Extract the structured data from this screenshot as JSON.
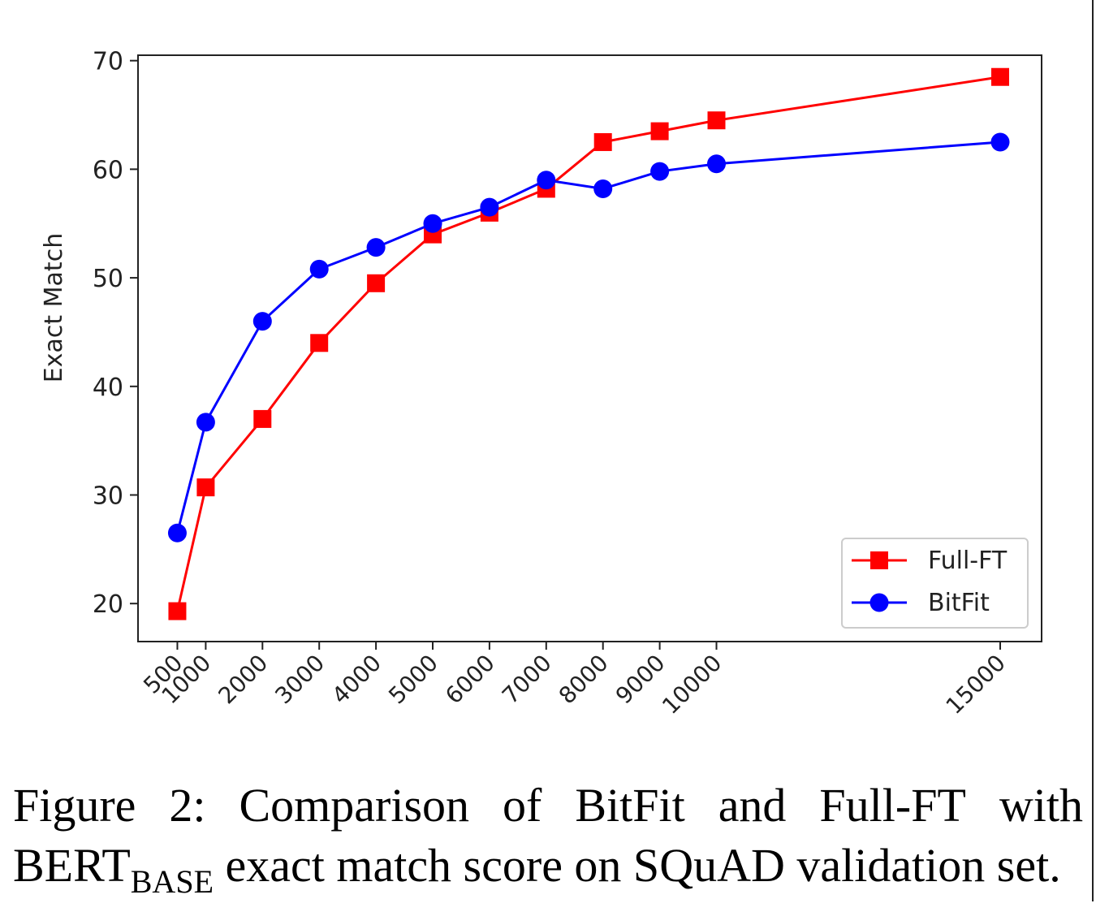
{
  "chart_data": {
    "type": "line",
    "x": [
      500,
      1000,
      2000,
      3000,
      4000,
      5000,
      6000,
      7000,
      8000,
      9000,
      10000,
      15000
    ],
    "xticklabels": [
      "500",
      "1000",
      "2000",
      "3000",
      "4000",
      "5000",
      "6000",
      "7000",
      "8000",
      "9000",
      "10000",
      "15000"
    ],
    "ylabel": "Exact Match",
    "xlabel": "",
    "ylim": [
      16.5,
      70.5
    ],
    "yticks": [
      "20",
      "30",
      "40",
      "50",
      "60",
      "70"
    ],
    "grid": false,
    "legend_position": "lower right",
    "series": [
      {
        "name": "Full-FT",
        "color": "#ff0000",
        "marker": "square",
        "values": [
          19.3,
          30.7,
          37.0,
          44.0,
          49.5,
          54.0,
          56.0,
          58.2,
          62.5,
          63.5,
          64.5,
          68.5
        ]
      },
      {
        "name": "BitFit",
        "color": "#0000ff",
        "marker": "circle",
        "values": [
          26.5,
          36.7,
          46.0,
          50.8,
          52.8,
          55.0,
          56.5,
          59.0,
          58.2,
          59.8,
          60.5,
          62.5
        ]
      }
    ]
  },
  "caption": {
    "line1_words": [
      "Figure",
      "2:",
      "Comparison",
      "of",
      "BitFit",
      "and",
      "Full-FT",
      "with"
    ],
    "line2_main": "BERT",
    "line2_sub": "BASE",
    "line2_rest": " exact match score on SQuAD validation set."
  }
}
